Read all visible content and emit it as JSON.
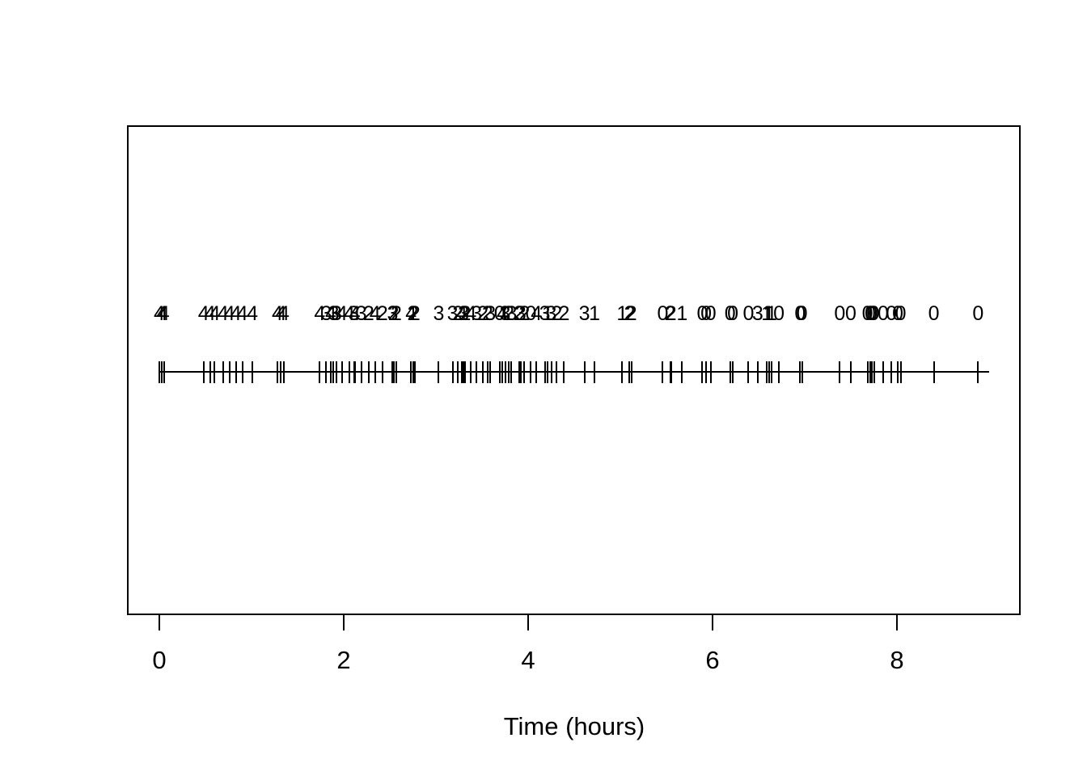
{
  "figure": {
    "background_color": "#ffffff",
    "line_color": "#000000"
  },
  "chart_data": {
    "type": "scatter",
    "subtype": "event-rug-plot",
    "title": "",
    "xlabel": "Time (hours)",
    "ylabel": "",
    "xlim": [
      -0.35,
      9.35
    ],
    "x_ticks": [
      0,
      2,
      4,
      6,
      8
    ],
    "grid": false,
    "legend": false,
    "description": "Rug of event times along a horizontal line with a count label (0-4) printed above each event time",
    "events": {
      "times": [
        0.0,
        0.03,
        0.05,
        0.48,
        0.55,
        0.6,
        0.69,
        0.76,
        0.83,
        0.9,
        1.01,
        1.28,
        1.32,
        1.35,
        1.74,
        1.81,
        1.86,
        1.89,
        1.92,
        1.98,
        2.06,
        2.11,
        2.12,
        2.19,
        2.27,
        2.34,
        2.42,
        2.53,
        2.54,
        2.57,
        2.73,
        2.75,
        2.77,
        3.03,
        3.18,
        3.24,
        3.28,
        3.3,
        3.32,
        3.38,
        3.44,
        3.51,
        3.56,
        3.59,
        3.69,
        3.72,
        3.75,
        3.79,
        3.82,
        3.9,
        3.92,
        3.96,
        4.03,
        4.09,
        4.18,
        4.21,
        4.25,
        4.31,
        4.39,
        4.61,
        4.72,
        5.02,
        5.1,
        5.12,
        5.46,
        5.54,
        5.55,
        5.67,
        5.89,
        5.93,
        5.98,
        6.19,
        6.22,
        6.39,
        6.49,
        6.59,
        6.61,
        6.64,
        6.72,
        6.95,
        6.97,
        7.38,
        7.5,
        7.68,
        7.71,
        7.73,
        7.75,
        7.85,
        7.94,
        8.01,
        8.04,
        8.4,
        8.88
      ],
      "counts": [
        4,
        4,
        4,
        4,
        4,
        4,
        4,
        4,
        4,
        4,
        4,
        4,
        4,
        4,
        4,
        3,
        4,
        3,
        3,
        4,
        4,
        3,
        4,
        3,
        2,
        4,
        2,
        3,
        2,
        2,
        4,
        2,
        2,
        3,
        3,
        2,
        4,
        3,
        2,
        4,
        3,
        2,
        2,
        3,
        0,
        4,
        3,
        2,
        3,
        2,
        3,
        2,
        0,
        4,
        3,
        1,
        3,
        2,
        2,
        3,
        1,
        1,
        2,
        2,
        0,
        2,
        2,
        1,
        0,
        0,
        0,
        0,
        0,
        0,
        3,
        1,
        1,
        1,
        0,
        0,
        0,
        0,
        0,
        0,
        0,
        0,
        0,
        0,
        0,
        0,
        0,
        0,
        0
      ],
      "rug_line_range": [
        0.0,
        9.0
      ]
    }
  }
}
